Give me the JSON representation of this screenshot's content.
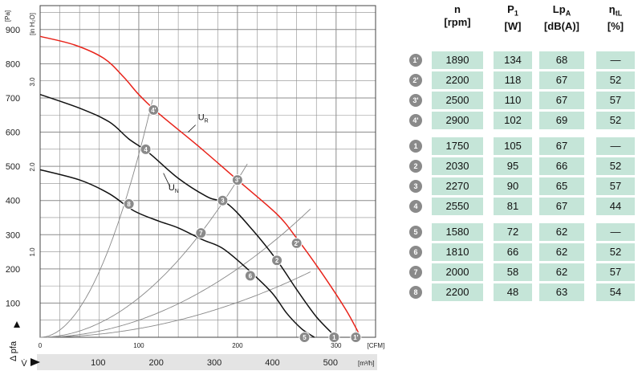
{
  "chart_data": {
    "type": "line",
    "x_axis_top": {
      "unit": "[CFM]",
      "range": [
        0,
        340
      ],
      "ticks": [
        0,
        100,
        200,
        300
      ]
    },
    "x_axis_bottom": {
      "label": "V̇",
      "unit": "[m³/h]",
      "range": [
        0,
        578
      ],
      "ticks": [
        100,
        200,
        300,
        400,
        500
      ]
    },
    "y_axis_left": {
      "label": "Δ pfa",
      "unit": "[Pa]",
      "range": [
        0,
        970
      ],
      "ticks": [
        100,
        200,
        300,
        400,
        500,
        600,
        700,
        800,
        900
      ]
    },
    "y_axis_inner": {
      "unit": "[in H₂O]",
      "ticks": [
        1.0,
        2.0,
        3.0
      ]
    },
    "grid": true,
    "series": [
      {
        "name": "UR",
        "color": "#e8231a",
        "points": [
          [
            0,
            880
          ],
          [
            35,
            855
          ],
          [
            65,
            815
          ],
          [
            85,
            760
          ],
          [
            100,
            710
          ],
          [
            120,
            655
          ],
          [
            160,
            560
          ],
          [
            200,
            460
          ],
          [
            240,
            360
          ],
          [
            260,
            290
          ],
          [
            285,
            190
          ],
          [
            310,
            80
          ],
          [
            325,
            0
          ]
        ]
      },
      {
        "name": "UN",
        "color": "#111111",
        "points": [
          [
            0,
            710
          ],
          [
            40,
            670
          ],
          [
            70,
            630
          ],
          [
            90,
            580
          ],
          [
            110,
            540
          ],
          [
            140,
            465
          ],
          [
            170,
            410
          ],
          [
            190,
            390
          ],
          [
            215,
            315
          ],
          [
            240,
            225
          ],
          [
            260,
            140
          ],
          [
            280,
            60
          ],
          [
            300,
            0
          ]
        ]
      },
      {
        "name": "",
        "color": "#111111",
        "points": [
          [
            0,
            490
          ],
          [
            40,
            460
          ],
          [
            70,
            420
          ],
          [
            95,
            370
          ],
          [
            120,
            340
          ],
          [
            140,
            320
          ],
          [
            165,
            285
          ],
          [
            185,
            260
          ],
          [
            210,
            200
          ],
          [
            235,
            130
          ],
          [
            250,
            70
          ],
          [
            265,
            25
          ],
          [
            278,
            0
          ]
        ]
      }
    ],
    "resistance_curves": [
      {
        "coef": 0.0535,
        "xmax": 120
      },
      {
        "coef": 0.0115,
        "xmax": 210
      },
      {
        "coef": 0.005,
        "xmax": 275
      },
      {
        "coef": 0.00255,
        "xmax": 275
      }
    ],
    "operating_points": [
      {
        "label": "1'",
        "x": 320,
        "y": 0
      },
      {
        "label": "2'",
        "x": 260,
        "y": 275
      },
      {
        "label": "3'",
        "x": 200,
        "y": 460
      },
      {
        "label": "4'",
        "x": 115,
        "y": 665
      },
      {
        "label": "1",
        "x": 298,
        "y": 0
      },
      {
        "label": "2",
        "x": 240,
        "y": 225
      },
      {
        "label": "3",
        "x": 185,
        "y": 400
      },
      {
        "label": "4",
        "x": 107,
        "y": 550
      },
      {
        "label": "5",
        "x": 268,
        "y": 0
      },
      {
        "label": "6",
        "x": 213,
        "y": 180
      },
      {
        "label": "7",
        "x": 163,
        "y": 305
      },
      {
        "label": "8",
        "x": 90,
        "y": 390
      }
    ],
    "curve_labels": [
      {
        "text": "U",
        "sub": "R",
        "x": 160,
        "y": 635
      },
      {
        "text": "U",
        "sub": "N",
        "x": 130,
        "y": 430
      }
    ]
  },
  "table": {
    "headers": [
      {
        "main": "n",
        "sub": "",
        "unit": "[rpm]"
      },
      {
        "main": "P",
        "sub": "1",
        "unit": "[W]"
      },
      {
        "main": "Lp",
        "sub": "A",
        "unit": "[dB(A)]"
      },
      {
        "main": "η",
        "sub": "tL",
        "unit": "[%]"
      }
    ],
    "rows": [
      {
        "label": "1'",
        "n": "1890",
        "p1": "134",
        "lpa": "68",
        "eta": "—"
      },
      {
        "label": "2'",
        "n": "2200",
        "p1": "118",
        "lpa": "67",
        "eta": "52"
      },
      {
        "label": "3'",
        "n": "2500",
        "p1": "110",
        "lpa": "67",
        "eta": "57"
      },
      {
        "label": "4'",
        "n": "2900",
        "p1": "102",
        "lpa": "69",
        "eta": "52"
      },
      {
        "label": "1",
        "n": "1750",
        "p1": "105",
        "lpa": "67",
        "eta": "—"
      },
      {
        "label": "2",
        "n": "2030",
        "p1": "95",
        "lpa": "66",
        "eta": "52"
      },
      {
        "label": "3",
        "n": "2270",
        "p1": "90",
        "lpa": "65",
        "eta": "57"
      },
      {
        "label": "4",
        "n": "2550",
        "p1": "81",
        "lpa": "67",
        "eta": "44"
      },
      {
        "label": "5",
        "n": "1580",
        "p1": "72",
        "lpa": "62",
        "eta": "—"
      },
      {
        "label": "6",
        "n": "1810",
        "p1": "66",
        "lpa": "62",
        "eta": "52"
      },
      {
        "label": "7",
        "n": "2000",
        "p1": "58",
        "lpa": "62",
        "eta": "57"
      },
      {
        "label": "8",
        "n": "2200",
        "p1": "48",
        "lpa": "63",
        "eta": "54"
      }
    ]
  },
  "colors": {
    "badge": "#8a8a8a",
    "cell": "#c5e5d8",
    "grid": "#8c8c8c",
    "resistance": "#888888"
  }
}
